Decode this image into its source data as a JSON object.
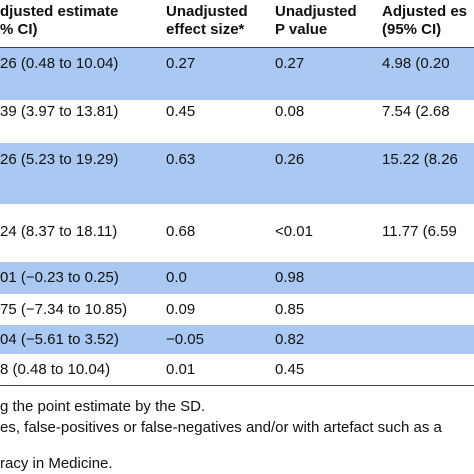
{
  "header": {
    "col1": [
      "djusted estimate",
      "% CI)"
    ],
    "col2": [
      "Unadjusted",
      "effect size*"
    ],
    "col3": [
      "Unadjusted",
      "P value"
    ],
    "col4": [
      "Adjusted es",
      "(95% CI)"
    ]
  },
  "rows": [
    {
      "estimate": "26 (0.48 to 10.04)",
      "effect": "0.27",
      "p": "0.27",
      "adjusted": "4.98 (0.20",
      "shaded": true
    },
    {
      "estimate": "39 (3.97 to 13.81)",
      "effect": "0.45",
      "p": "0.08",
      "adjusted": "7.54 (2.68",
      "shaded": false
    },
    {
      "estimate": "26 (5.23 to 19.29)",
      "effect": "0.63",
      "p": "0.26",
      "adjusted": "15.22 (8.26",
      "shaded": true
    },
    {
      "estimate": "24 (8.37 to 18.11)",
      "effect": "0.68",
      "p": "<0.01",
      "adjusted": "11.77 (6.59",
      "shaded": false
    },
    {
      "estimate": "01 (−0.23 to 0.25)",
      "effect": "0.0",
      "p": "0.98",
      "adjusted": "",
      "shaded": true
    },
    {
      "estimate": "75 (−7.34 to 10.85)",
      "effect": "0.09",
      "p": "0.85",
      "adjusted": "",
      "shaded": false
    },
    {
      "estimate": "04 (−5.61 to 3.52)",
      "effect": "−0.05",
      "p": "0.82",
      "adjusted": "",
      "shaded": true
    },
    {
      "estimate": "8 (0.48 to 10.04)",
      "effect": "0.01",
      "p": "0.45",
      "adjusted": "",
      "shaded": false
    }
  ],
  "footnotes": [
    "g the point estimate by the SD.",
    "es, false-positives or false-negatives and/or with artefact such as a",
    "racy in Medicine."
  ]
}
